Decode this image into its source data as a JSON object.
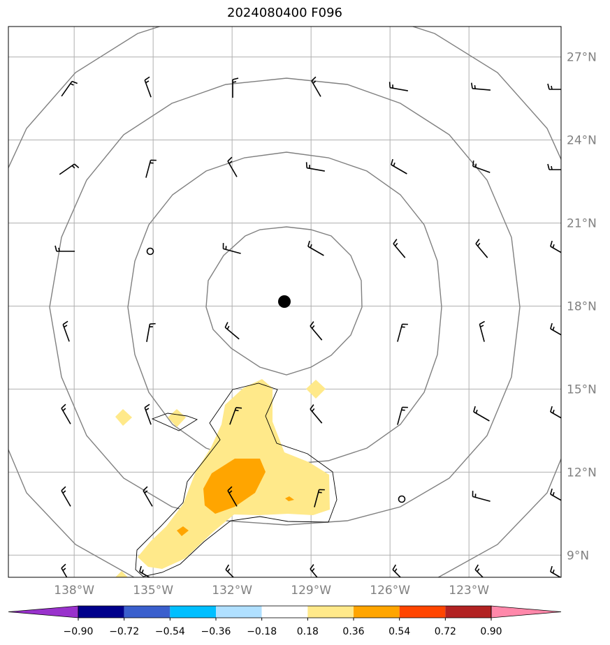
{
  "title": "2024080400 F096",
  "map": {
    "lon_range": [
      -140.5,
      -119.5
    ],
    "lat_range": [
      8.2,
      28.1
    ],
    "lat_ticks": [
      {
        "value": 9,
        "label": "9°N"
      },
      {
        "value": 12,
        "label": "12°N"
      },
      {
        "value": 15,
        "label": "15°N"
      },
      {
        "value": 18,
        "label": "18°N"
      },
      {
        "value": 21,
        "label": "21°N"
      },
      {
        "value": 24,
        "label": "24°N"
      },
      {
        "value": 27,
        "label": "27°N"
      }
    ],
    "lon_ticks": [
      {
        "value": -138,
        "label": "138°W"
      },
      {
        "value": -135,
        "label": "135°W"
      },
      {
        "value": -132,
        "label": "132°W"
      },
      {
        "value": -129,
        "label": "129°W"
      },
      {
        "value": -126,
        "label": "126°W"
      },
      {
        "value": -123,
        "label": "123°W"
      }
    ],
    "center": {
      "lon": -130.1,
      "lat": 18.2
    },
    "grid_color": "#b0b0b0",
    "ring_color": "#808080",
    "fill_colors": {
      "0.18-0.36": "#ffe98a",
      "0.36-0.54": "#ffa500"
    }
  },
  "colorbar": {
    "colors": [
      "#9932cc",
      "#00008b",
      "#3a5fcd",
      "#00bfff",
      "#b0e0ff",
      "#ffffff",
      "#ffe98a",
      "#ffa500",
      "#ff4500",
      "#b22222",
      "#ff88aa"
    ],
    "tick_labels": [
      "−0.90",
      "−0.72",
      "−0.54",
      "−0.36",
      "−0.18",
      "0.18",
      "0.36",
      "0.54",
      "0.72",
      "0.90"
    ]
  }
}
